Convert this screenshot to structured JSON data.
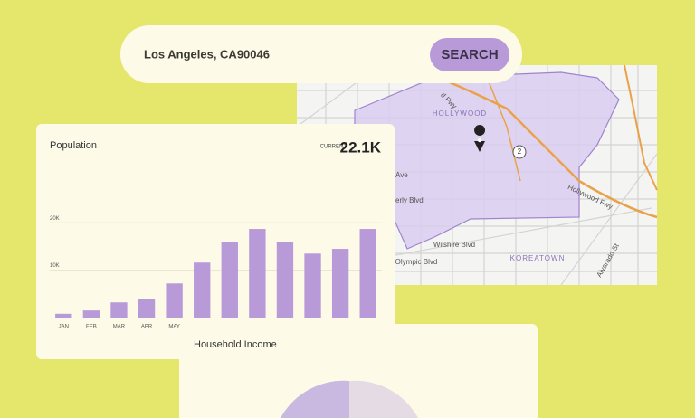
{
  "search": {
    "query": "Los Angeles, CA90046",
    "button": "SEARCH"
  },
  "map": {
    "labels": [
      "HOLLYWOOD",
      "KOREATOWN",
      "Hollywood Fwy",
      "Wilshire Blvd",
      "Olympic Blvd",
      "erly Blvd",
      "Ave",
      "d Fwy",
      "Alvarado St",
      "2"
    ]
  },
  "population_card": {
    "current_label": "CURRENT",
    "current_value": "22.1K",
    "chart_data": {
      "type": "bar",
      "title": "Population",
      "categories": [
        "JAN",
        "FEB",
        "MAR",
        "APR",
        "MAY",
        null,
        null,
        null,
        null,
        null,
        null,
        null
      ],
      "values": [
        800,
        1500,
        3200,
        4000,
        7200,
        11600,
        16000,
        18700,
        16000,
        13500,
        14500,
        18700
      ],
      "color": "#b89ad9",
      "ylim": [
        0,
        21000
      ],
      "yticks": [
        {
          "value": 10000,
          "label": "10K"
        },
        {
          "value": 20000,
          "label": "20K"
        }
      ],
      "grid": true
    }
  },
  "income_card": {
    "title": "Household Income"
  }
}
